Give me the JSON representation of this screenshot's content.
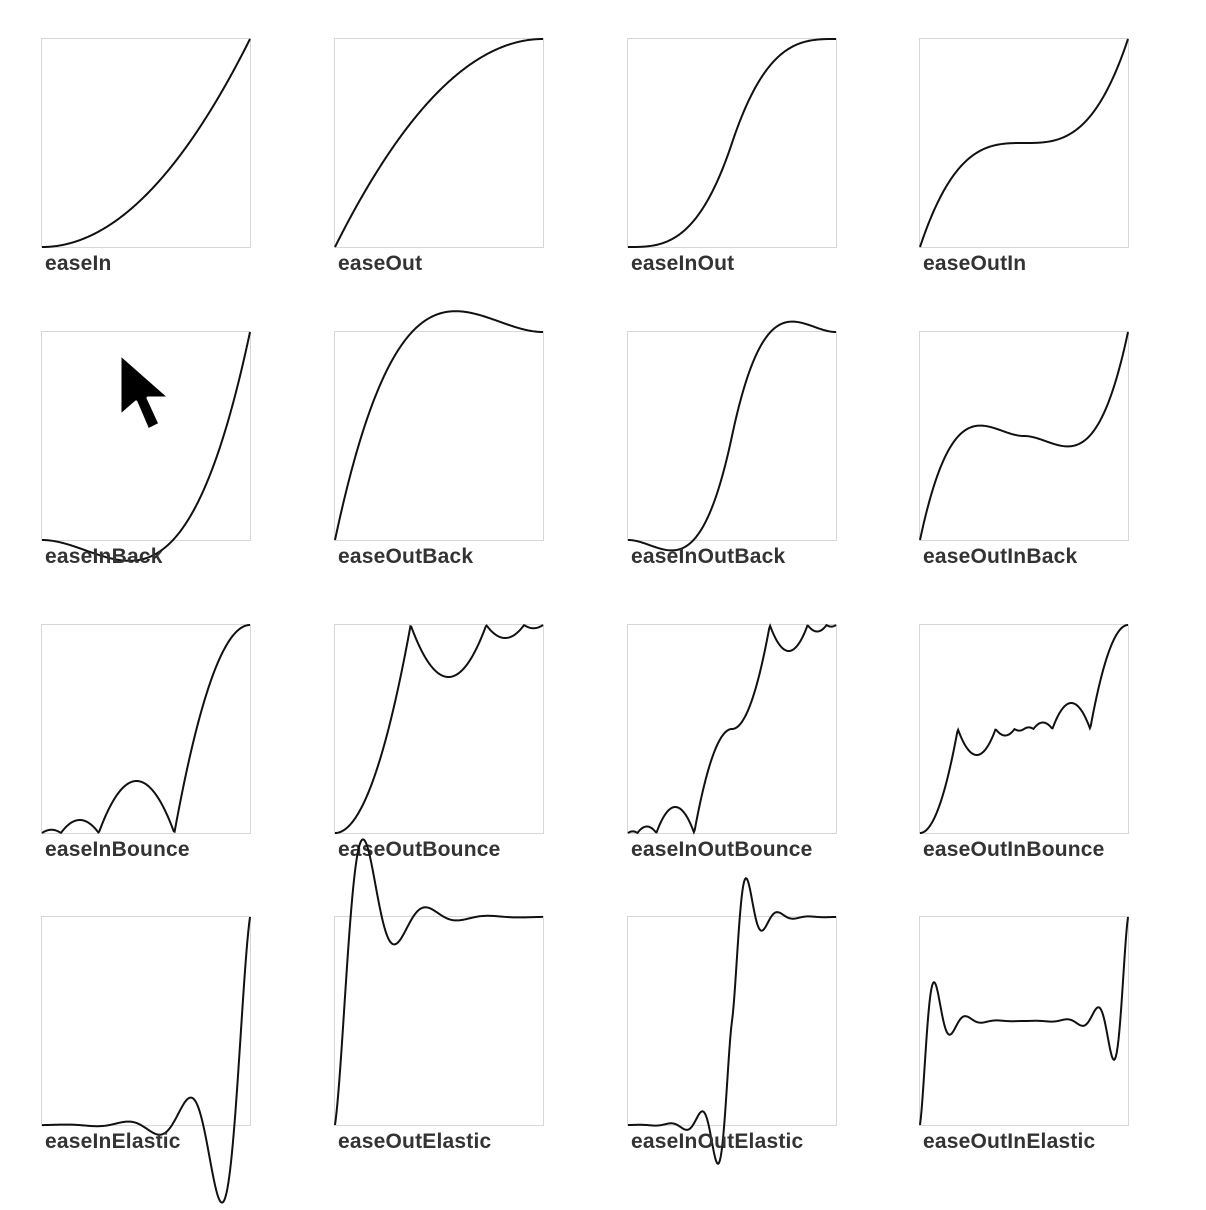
{
  "panels": [
    {
      "label": "easeIn"
    },
    {
      "label": "easeOut"
    },
    {
      "label": "easeInOut"
    },
    {
      "label": "easeOutIn"
    },
    {
      "label": "easeInBack"
    },
    {
      "label": "easeOutBack"
    },
    {
      "label": "easeInOutBack"
    },
    {
      "label": "easeOutInBack"
    },
    {
      "label": "easeInBounce"
    },
    {
      "label": "easeOutBounce"
    },
    {
      "label": "easeInOutBounce"
    },
    {
      "label": "easeOutInBounce"
    },
    {
      "label": "easeInElastic"
    },
    {
      "label": "easeOutElastic"
    },
    {
      "label": "easeInOutElastic"
    },
    {
      "label": "easeOutInElastic"
    }
  ],
  "cursor": {
    "icon": "mouse-pointer-icon"
  }
}
